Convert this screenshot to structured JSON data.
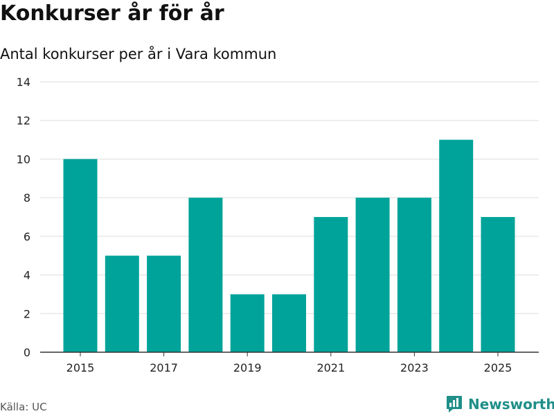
{
  "header": {
    "title": "Konkurser år för år",
    "subtitle": "Antal konkurser per år i Vara kommun"
  },
  "footer": {
    "source": "Källa: UC",
    "brand": "Newsworthy",
    "brand_icon": "newsworthy-logo-icon"
  },
  "colors": {
    "bar": "#00a39a",
    "grid": "#dddddd",
    "axis": "#333333",
    "brand": "#1f8f88"
  },
  "chart_data": {
    "type": "bar",
    "title": "Konkurser år för år",
    "subtitle": "Antal konkurser per år i Vara kommun",
    "categories": [
      2015,
      2016,
      2017,
      2018,
      2019,
      2020,
      2021,
      2022,
      2023,
      2024,
      2025
    ],
    "values": [
      10,
      5,
      5,
      8,
      3,
      3,
      7,
      8,
      8,
      11,
      7
    ],
    "xticks": [
      "2015",
      "2017",
      "2019",
      "2021",
      "2023",
      "2025"
    ],
    "yticks": [
      0,
      2,
      4,
      6,
      8,
      10,
      12,
      14
    ],
    "ylim": [
      0,
      14
    ],
    "grid": true,
    "legend": "none"
  }
}
